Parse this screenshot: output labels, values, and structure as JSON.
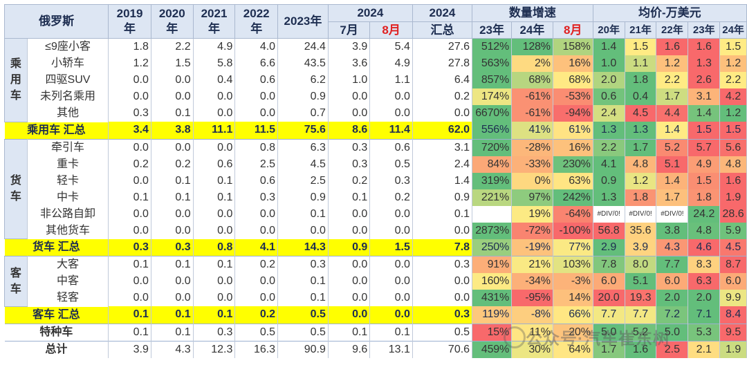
{
  "header": {
    "country": "俄罗斯",
    "years": [
      "2019年",
      "2020年",
      "2021年",
      "2022年",
      "2023年"
    ],
    "y2024": "2024",
    "jul": "7月",
    "aug": "8月",
    "total2024_line1": "2024",
    "total2024_line2": "汇总",
    "growth_title": "数量增速",
    "growth_cols": [
      "23年",
      "24年",
      "8月"
    ],
    "price_title": "均价-万美元",
    "price_cols": [
      "20年",
      "21年",
      "22年",
      "23年",
      "24年"
    ]
  },
  "groups": {
    "passenger": "乘用车",
    "truck": "货车",
    "bus": "客车"
  },
  "rows": [
    {
      "label": "≤9座小客",
      "vals": [
        "1.8",
        "2.2",
        "4.9",
        "4.0",
        "24.4",
        "3.9",
        "5.4",
        "27.6"
      ],
      "growth": [
        "512%",
        "128%",
        "158%"
      ],
      "price": [
        "1.4",
        "1.5",
        "1.6",
        "1.6",
        "1.5"
      ]
    },
    {
      "label": "小轿车",
      "vals": [
        "1.2",
        "1.5",
        "5.8",
        "6.6",
        "43.5",
        "3.6",
        "4.9",
        "27.8"
      ],
      "growth": [
        "563%",
        "2%",
        "16%"
      ],
      "price": [
        "1.0",
        "1.1",
        "1.2",
        "1.3",
        "1.2"
      ]
    },
    {
      "label": "四驱SUV",
      "vals": [
        "0.0",
        "0.0",
        "0.4",
        "0.6",
        "6.2",
        "1.0",
        "1.1",
        "6.4"
      ],
      "growth": [
        "857%",
        "68%",
        "68%"
      ],
      "price": [
        "2.0",
        "1.8",
        "2.2",
        "2.6",
        "2.2"
      ]
    },
    {
      "label": "未列名乘用",
      "vals": [
        "0.0",
        "0.0",
        "0.0",
        "0.0",
        "0.9",
        "0.0",
        "0.0",
        "0.2"
      ],
      "growth": [
        "174%",
        "-61%",
        "-53%"
      ],
      "price": [
        "0.6",
        "0.4",
        "1.7",
        "3.1",
        "4.2"
      ]
    },
    {
      "label": "其他",
      "vals": [
        "0.3",
        "0.1",
        "0.0",
        "0.0",
        "0.7",
        "0.0",
        "0.0",
        "0.0"
      ],
      "growth": [
        "6670%",
        "-61%",
        "-94%"
      ],
      "price": [
        "2.4",
        "4.5",
        "4.4",
        "1.4",
        "1.2"
      ]
    },
    {
      "label": "乘用车 汇总",
      "vals": [
        "3.4",
        "3.8",
        "11.1",
        "11.5",
        "75.6",
        "8.6",
        "11.4",
        "62.0"
      ],
      "growth": [
        "556%",
        "41%",
        "61%"
      ],
      "price": [
        "1.3",
        "1.3",
        "1.4",
        "1.5",
        "1.5"
      ]
    },
    {
      "label": "牵引车",
      "vals": [
        "0.0",
        "0.0",
        "0.0",
        "0.8",
        "6.3",
        "0.3",
        "0.6",
        "3.1"
      ],
      "growth": [
        "720%",
        "-28%",
        "16%"
      ],
      "price": [
        "2.2",
        "1.7",
        "5.2",
        "5.7",
        "5.6"
      ]
    },
    {
      "label": "重卡",
      "vals": [
        "0.2",
        "0.2",
        "0.6",
        "2.5",
        "4.5",
        "0.3",
        "0.5",
        "2.4"
      ],
      "growth": [
        "84%",
        "-33%",
        "230%"
      ],
      "price": [
        "4.1",
        "4.8",
        "5.1",
        "4.9",
        "4.8"
      ]
    },
    {
      "label": "轻卡",
      "vals": [
        "0.0",
        "0.1",
        "0.1",
        "0.6",
        "2.5",
        "0.2",
        "0.3",
        "1.4"
      ],
      "growth": [
        "319%",
        "0%",
        "63%"
      ],
      "price": [
        "0.9",
        "1.2",
        "1.4",
        "1.5",
        "1.6"
      ]
    },
    {
      "label": "中卡",
      "vals": [
        "0.1",
        "0.1",
        "0.1",
        "0.3",
        "0.9",
        "0.1",
        "0.2",
        "0.9"
      ],
      "growth": [
        "221%",
        "97%",
        "242%"
      ],
      "price": [
        "1.3",
        "1.8",
        "1.7",
        "1.8",
        "1.9"
      ]
    },
    {
      "label": "非公路自卸",
      "vals": [
        "0.0",
        "0.0",
        "0.0",
        "0.0",
        "0.1",
        "0.0",
        "0.0",
        "0.1"
      ],
      "growth": [
        "",
        "19%",
        "-64%"
      ],
      "price": [
        "#DIV/0!",
        "#DIV/0!",
        "#DIV/0!",
        "24.2",
        "28.6"
      ]
    },
    {
      "label": "其他货车",
      "vals": [
        "0.0",
        "0.0",
        "0.0",
        "0.0",
        "0.0",
        "0.0",
        "0.0",
        "0.0"
      ],
      "growth": [
        "2873%",
        "-72%",
        "-100%"
      ],
      "price": [
        "56.8",
        "35.6",
        "3.8",
        "4.8",
        "5.9"
      ]
    },
    {
      "label": "货车 汇总",
      "vals": [
        "0.3",
        "0.3",
        "0.8",
        "4.1",
        "14.3",
        "0.9",
        "1.5",
        "7.8"
      ],
      "growth": [
        "250%",
        "-19%",
        "77%"
      ],
      "price": [
        "2.9",
        "3.9",
        "4.3",
        "4.6",
        "4.5"
      ]
    },
    {
      "label": "大客",
      "vals": [
        "0.1",
        "0.1",
        "0.1",
        "0.2",
        "0.3",
        "0.0",
        "0.0",
        "0.3"
      ],
      "growth": [
        "91%",
        "21%",
        "103%"
      ],
      "price": [
        "7.8",
        "8.0",
        "7.7",
        "8.3",
        "8.7"
      ]
    },
    {
      "label": "中客",
      "vals": [
        "0.0",
        "0.0",
        "0.0",
        "0.0",
        "0.1",
        "0.0",
        "0.0",
        "0.0"
      ],
      "growth": [
        "160%",
        "-34%",
        "-3%"
      ],
      "price": [
        "6.0",
        "5.1",
        "6.0",
        "6.3",
        "6.0"
      ]
    },
    {
      "label": "轻客",
      "vals": [
        "0.0",
        "0.0",
        "0.0",
        "0.0",
        "0.1",
        "0.0",
        "0.0",
        "0.0"
      ],
      "growth": [
        "431%",
        "-95%",
        "14%"
      ],
      "price": [
        "20.0",
        "19.3",
        "2.0",
        "2.0",
        "9.9"
      ]
    },
    {
      "label": "客车 汇总",
      "vals": [
        "0.1",
        "0.1",
        "0.1",
        "0.2",
        "0.5",
        "0.0",
        "0.0",
        "0.3"
      ],
      "growth": [
        "119%",
        "-8%",
        "66%"
      ],
      "price": [
        "7.7",
        "7.7",
        "7.2",
        "7.1",
        "8.4"
      ]
    },
    {
      "label": "特种车",
      "vals": [
        "0.1",
        "0.1",
        "0.3",
        "0.5",
        "0.5",
        "0.1",
        "0.1",
        "0.5"
      ],
      "growth": [
        "15%",
        "11%",
        "20%"
      ],
      "price": [
        "5.0",
        "5.2",
        "5.0",
        "5.3",
        "9.5"
      ]
    },
    {
      "label": "总计",
      "vals": [
        "3.9",
        "4.3",
        "12.3",
        "16.3",
        "90.9",
        "9.6",
        "13.1",
        "70.6"
      ],
      "growth": [
        "459%",
        "30%",
        "64%"
      ],
      "price": [
        "1.7",
        "1.6",
        "2.5",
        "2.1",
        "1.9"
      ]
    }
  ],
  "watermark": "公众号·汽车崔东树",
  "colors": {
    "header_bg": "#dde6f3",
    "header_text": "#1d2d50",
    "summary_bg": "#ffff00",
    "red_text": "#e02020",
    "scale_green": "#63be7b",
    "scale_yellow": "#ffeb84",
    "scale_red": "#f8696b"
  }
}
